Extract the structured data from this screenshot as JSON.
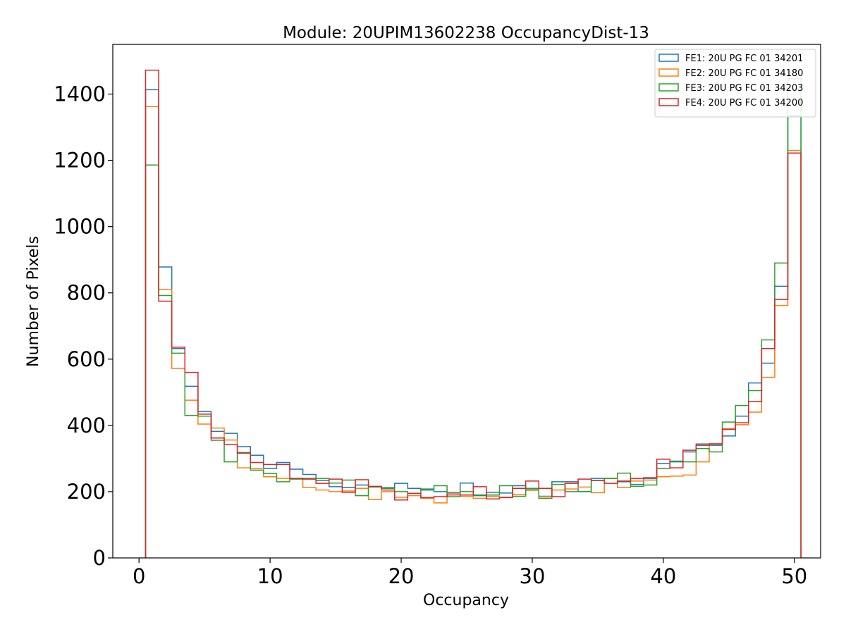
{
  "chart_data": {
    "type": "histogram",
    "title": "Module: 20UPIM13602238 OccupancyDist-13",
    "xlabel": "Occupancy",
    "ylabel": "Number of Pixels",
    "xlim": [
      -2,
      52
    ],
    "ylim": [
      0,
      1550
    ],
    "xticks": [
      0,
      10,
      20,
      30,
      40,
      50
    ],
    "yticks": [
      0,
      200,
      400,
      600,
      800,
      1000,
      1200,
      1400
    ],
    "bin_edges_start": 0.5,
    "bin_width": 1,
    "bin_count": 49,
    "legend_position": "top-right",
    "series": [
      {
        "name": "FE1: 20U PG FC 01 34201",
        "color": "#1f77b4",
        "values": [
          1413,
          878,
          632,
          518,
          442,
          382,
          376,
          336,
          310,
          270,
          288,
          268,
          252,
          234,
          215,
          212,
          220,
          215,
          212,
          225,
          210,
          205,
          200,
          196,
          226,
          188,
          198,
          196,
          218,
          206,
          186,
          230,
          230,
          200,
          240,
          240,
          230,
          222,
          240,
          285,
          292,
          320,
          344,
          340,
          368,
          428,
          528,
          588,
          820
        ]
      },
      {
        "name": "FE2: 20U PG FC 01 34180",
        "color": "#ff7f0e",
        "values": [
          1362,
          810,
          572,
          476,
          404,
          392,
          356,
          272,
          270,
          245,
          240,
          240,
          212,
          205,
          200,
          202,
          210,
          176,
          200,
          183,
          188,
          180,
          166,
          198,
          186,
          180,
          186,
          183,
          192,
          204,
          185,
          205,
          208,
          214,
          197,
          240,
          212,
          232,
          235,
          245,
          247,
          250,
          290,
          345,
          390,
          402,
          440,
          545,
          762
        ]
      },
      {
        "name": "FE3: 20U PG FC 01 34203",
        "color": "#2ca02c",
        "values": [
          1186,
          792,
          618,
          430,
          428,
          355,
          290,
          318,
          265,
          255,
          230,
          238,
          240,
          240,
          226,
          235,
          188,
          214,
          210,
          200,
          195,
          208,
          218,
          185,
          200,
          190,
          190,
          218,
          186,
          210,
          180,
          222,
          200,
          200,
          234,
          240,
          256,
          216,
          220,
          270,
          290,
          290,
          330,
          320,
          410,
          460,
          505,
          658,
          890
        ]
      },
      {
        "name": "FE4: 20U PG FC 01 34200",
        "color": "#d62728",
        "values": [
          1472,
          775,
          636,
          560,
          434,
          362,
          342,
          316,
          288,
          282,
          282,
          240,
          238,
          225,
          238,
          198,
          236,
          216,
          205,
          175,
          195,
          182,
          185,
          190,
          190,
          215,
          178,
          182,
          210,
          232,
          210,
          185,
          225,
          238,
          234,
          225,
          232,
          240,
          242,
          298,
          272,
          325,
          340,
          344,
          388,
          408,
          472,
          632,
          780
        ]
      }
    ],
    "spike_at_x_50": [
      1334,
      1230,
      1446,
      1222
    ]
  }
}
